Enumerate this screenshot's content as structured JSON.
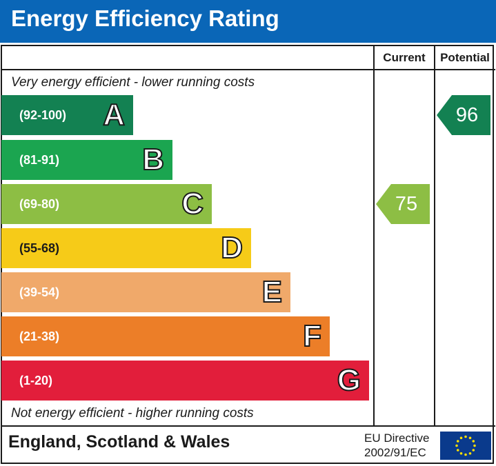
{
  "title": "Energy Efficiency Rating",
  "columns": {
    "current": "Current",
    "potential": "Potential"
  },
  "top_note": "Very energy efficient - lower running costs",
  "bottom_note": "Not energy efficient - higher running costs",
  "footer": {
    "region": "England, Scotland & Wales",
    "directive_line1": "EU Directive",
    "directive_line2": "2002/91/EC"
  },
  "colors": {
    "title_bar": "#0a66b7",
    "A": "#138152",
    "B": "#1ba550",
    "C": "#8dbe44",
    "D": "#f6cb18",
    "E": "#f0a96a",
    "F": "#ec7e28",
    "G": "#e21e3b",
    "eu_flag": "#0a3a8c",
    "eu_stars": "#ffe000"
  },
  "chart_data": {
    "type": "bar",
    "categories": [
      "A",
      "B",
      "C",
      "D",
      "E",
      "F",
      "G"
    ],
    "ranges": [
      "(92-100)",
      "(81-91)",
      "(69-80)",
      "(55-68)",
      "(39-54)",
      "(21-38)",
      "(1-20)"
    ],
    "current": {
      "value": 75,
      "band": "C"
    },
    "potential": {
      "value": 96,
      "band": "A"
    }
  },
  "icons": {
    "eu_flag": "eu-flag-icon"
  }
}
